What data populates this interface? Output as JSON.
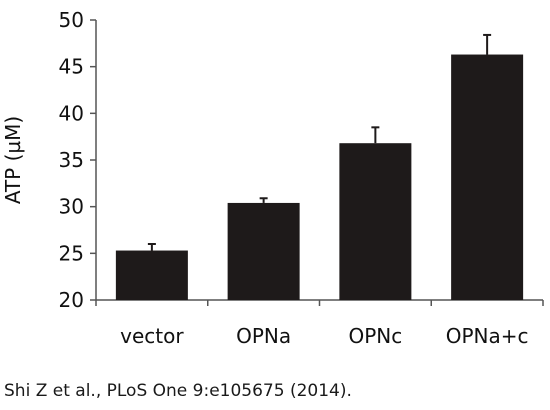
{
  "chart_data": {
    "type": "bar",
    "categories": [
      "vector",
      "OPNa",
      "OPNc",
      "OPNa+c"
    ],
    "values": [
      25.3,
      30.4,
      36.8,
      46.3
    ],
    "errors": [
      0.7,
      0.5,
      1.7,
      2.1
    ],
    "ylabel": "ATP (µM)",
    "xlabel": "",
    "ylim": [
      20,
      50
    ],
    "yticks": [
      20,
      25,
      30,
      35,
      40,
      45,
      50
    ],
    "grid": false,
    "bar_color": "#1e1a1a"
  },
  "caption": "Shi Z et al., PLoS One 9:e105675 (2014)."
}
